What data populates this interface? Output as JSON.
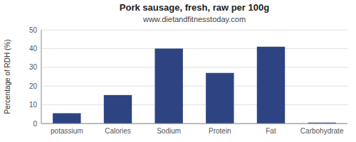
{
  "chart_data": {
    "type": "bar",
    "title": "Pork sausage, fresh, raw per 100g",
    "subtitle": "www.dietandfitnesstoday.com",
    "ylabel": "Percentage of RDH (%)",
    "categories": [
      "potassium",
      "Calories",
      "Sodium",
      "Protein",
      "Fat",
      "Carbohydrate"
    ],
    "values": [
      5.5,
      15.2,
      40.0,
      27.0,
      41.0,
      0.5
    ],
    "color": "#2e4482",
    "ylim": [
      0,
      50
    ],
    "yticks": [
      0,
      10,
      20,
      30,
      40,
      50
    ],
    "grid": true
  }
}
